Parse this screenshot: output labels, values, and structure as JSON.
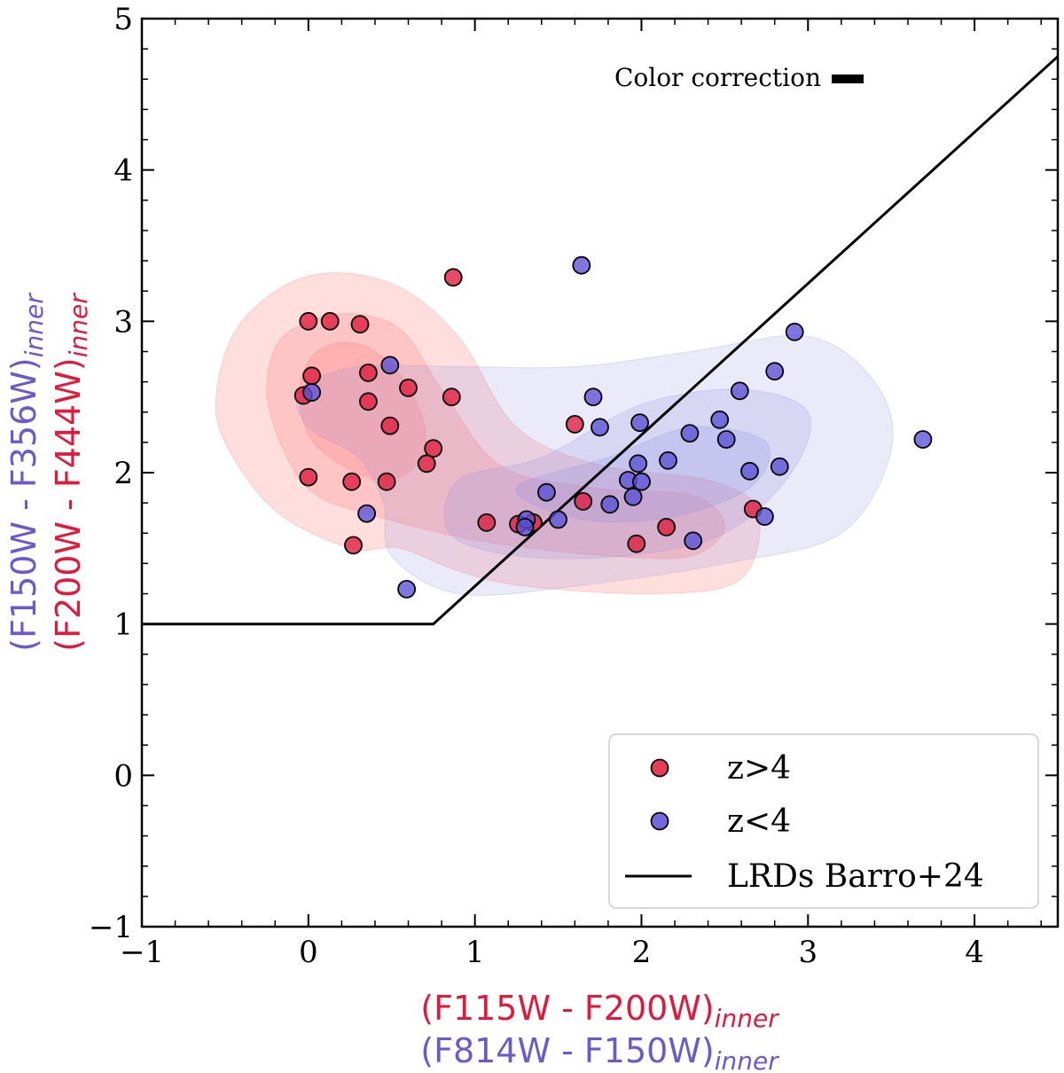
{
  "chart_data": {
    "type": "scatter",
    "title": "",
    "xlabel": {
      "line1": {
        "text": "(F115W - F200W)",
        "sub": "inner",
        "color": "#e01a3c"
      },
      "line2": {
        "text": "(F814W - F150W)",
        "sub": "inner",
        "color": "#6a5acd"
      }
    },
    "ylabel": {
      "line1": {
        "text": "(F150W - F356W)",
        "sub": "inner",
        "color": "#6a5acd"
      },
      "line2": {
        "text": "(F200W - F444W)",
        "sub": "inner",
        "color": "#e01a3c"
      }
    },
    "xlim": [
      -1,
      4.5
    ],
    "ylim": [
      -1,
      5
    ],
    "xticks": [
      -1,
      0,
      1,
      2,
      3,
      4
    ],
    "yticks": [
      -1,
      0,
      1,
      2,
      3,
      4,
      5
    ],
    "xtick_labels": [
      "−1",
      "0",
      "1",
      "2",
      "3",
      "4"
    ],
    "ytick_labels": [
      "−1",
      "0",
      "1",
      "2",
      "3",
      "4",
      "5"
    ],
    "x_minor_step": 0.2,
    "y_minor_step": 0.2,
    "series": [
      {
        "name": "z>4",
        "color": "#e01a3c",
        "points": [
          [
            0.0,
            3.0
          ],
          [
            0.13,
            3.0
          ],
          [
            0.31,
            2.98
          ],
          [
            0.87,
            3.29
          ],
          [
            0.02,
            2.64
          ],
          [
            -0.03,
            2.51
          ],
          [
            0.36,
            2.66
          ],
          [
            0.6,
            2.56
          ],
          [
            0.86,
            2.5
          ],
          [
            0.36,
            2.47
          ],
          [
            0.49,
            2.31
          ],
          [
            0.75,
            2.16
          ],
          [
            0.71,
            2.06
          ],
          [
            0.0,
            1.97
          ],
          [
            0.26,
            1.94
          ],
          [
            0.47,
            1.94
          ],
          [
            0.27,
            1.52
          ],
          [
            1.6,
            2.32
          ],
          [
            1.65,
            1.81
          ],
          [
            1.07,
            1.67
          ],
          [
            1.35,
            1.67
          ],
          [
            1.26,
            1.66
          ],
          [
            2.15,
            1.64
          ],
          [
            1.97,
            1.53
          ],
          [
            2.67,
            1.76
          ]
        ]
      },
      {
        "name": "z<4",
        "color": "#5b4fd6",
        "points": [
          [
            1.64,
            3.37
          ],
          [
            2.92,
            2.93
          ],
          [
            0.02,
            2.53
          ],
          [
            0.49,
            2.71
          ],
          [
            1.71,
            2.5
          ],
          [
            2.59,
            2.54
          ],
          [
            2.8,
            2.67
          ],
          [
            1.75,
            2.3
          ],
          [
            1.99,
            2.33
          ],
          [
            2.47,
            2.35
          ],
          [
            2.29,
            2.26
          ],
          [
            2.51,
            2.22
          ],
          [
            3.69,
            2.22
          ],
          [
            2.16,
            2.08
          ],
          [
            1.98,
            2.06
          ],
          [
            2.65,
            2.01
          ],
          [
            2.83,
            2.04
          ],
          [
            1.92,
            1.95
          ],
          [
            2.0,
            1.94
          ],
          [
            1.43,
            1.87
          ],
          [
            1.95,
            1.84
          ],
          [
            1.81,
            1.79
          ],
          [
            1.5,
            1.69
          ],
          [
            1.31,
            1.69
          ],
          [
            1.3,
            1.64
          ],
          [
            2.74,
            1.71
          ],
          [
            2.31,
            1.55
          ],
          [
            0.35,
            1.73
          ],
          [
            0.59,
            1.23
          ]
        ]
      }
    ],
    "line": {
      "name": "LRDs Barro+24",
      "color": "#000000",
      "points": [
        [
          -1.0,
          1.0
        ],
        [
          0.75,
          1.0
        ],
        [
          4.5,
          4.75
        ]
      ]
    },
    "contours": [
      {
        "group": "z>4",
        "color": "#ff6a6a",
        "levels": [
          {
            "opacity": 0.22,
            "path": [
              [
                -0.55,
                2.55
              ],
              [
                -0.4,
                3.0
              ],
              [
                0.0,
                3.3
              ],
              [
                0.5,
                3.25
              ],
              [
                0.9,
                2.9
              ],
              [
                1.25,
                2.3
              ],
              [
                1.75,
                2.05
              ],
              [
                2.4,
                1.95
              ],
              [
                2.7,
                1.75
              ],
              [
                2.6,
                1.3
              ],
              [
                2.1,
                1.2
              ],
              [
                1.3,
                1.25
              ],
              [
                0.9,
                1.35
              ],
              [
                0.55,
                1.5
              ],
              [
                0.25,
                1.5
              ],
              [
                -0.2,
                1.75
              ],
              [
                -0.5,
                2.2
              ]
            ]
          },
          {
            "opacity": 0.22,
            "path": [
              [
                -0.25,
                2.55
              ],
              [
                -0.15,
                2.9
              ],
              [
                0.2,
                3.05
              ],
              [
                0.55,
                2.95
              ],
              [
                0.8,
                2.55
              ],
              [
                1.15,
                2.05
              ],
              [
                1.7,
                1.9
              ],
              [
                2.3,
                1.85
              ],
              [
                2.5,
                1.65
              ],
              [
                2.3,
                1.45
              ],
              [
                1.8,
                1.45
              ],
              [
                1.2,
                1.52
              ],
              [
                0.8,
                1.6
              ],
              [
                0.45,
                1.7
              ],
              [
                0.05,
                1.85
              ],
              [
                -0.15,
                2.15
              ]
            ]
          },
          {
            "opacity": 0.22,
            "path": [
              [
                -0.05,
                2.55
              ],
              [
                0.05,
                2.8
              ],
              [
                0.3,
                2.85
              ],
              [
                0.55,
                2.65
              ],
              [
                0.7,
                2.3
              ],
              [
                0.65,
                2.05
              ],
              [
                0.45,
                1.95
              ],
              [
                0.2,
                2.05
              ],
              [
                0.0,
                2.25
              ]
            ]
          }
        ]
      },
      {
        "group": "z<4",
        "color": "#8a8ae0",
        "levels": [
          {
            "opacity": 0.18,
            "path": [
              [
                -0.05,
                2.55
              ],
              [
                0.3,
                2.7
              ],
              [
                0.9,
                2.7
              ],
              [
                1.6,
                2.7
              ],
              [
                2.3,
                2.8
              ],
              [
                3.0,
                2.9
              ],
              [
                3.4,
                2.6
              ],
              [
                3.5,
                2.15
              ],
              [
                3.2,
                1.6
              ],
              [
                2.5,
                1.4
              ],
              [
                1.6,
                1.25
              ],
              [
                0.9,
                1.2
              ],
              [
                0.5,
                1.45
              ],
              [
                0.45,
                1.8
              ],
              [
                0.3,
                2.1
              ],
              [
                0.0,
                2.3
              ]
            ]
          },
          {
            "opacity": 0.2,
            "path": [
              [
                0.9,
                1.95
              ],
              [
                1.4,
                2.1
              ],
              [
                2.0,
                2.45
              ],
              [
                2.6,
                2.55
              ],
              [
                3.0,
                2.4
              ],
              [
                2.9,
                2.0
              ],
              [
                2.5,
                1.6
              ],
              [
                1.9,
                1.45
              ],
              [
                1.25,
                1.45
              ],
              [
                0.85,
                1.6
              ]
            ]
          },
          {
            "opacity": 0.22,
            "path": [
              [
                1.25,
                1.9
              ],
              [
                1.8,
                2.1
              ],
              [
                2.3,
                2.3
              ],
              [
                2.75,
                2.2
              ],
              [
                2.65,
                1.9
              ],
              [
                2.15,
                1.7
              ],
              [
                1.6,
                1.7
              ]
            ]
          }
        ]
      }
    ],
    "legend": {
      "position": "lower-right",
      "entries": [
        {
          "label": "z>4",
          "kind": "marker",
          "color": "#e01a3c"
        },
        {
          "label": "z<4",
          "kind": "marker",
          "color": "#5b4fd6"
        },
        {
          "label": "LRDs Barro+24",
          "kind": "line",
          "color": "#000000"
        }
      ]
    },
    "annotation": {
      "text": "Color correction",
      "position": "top-right"
    }
  }
}
